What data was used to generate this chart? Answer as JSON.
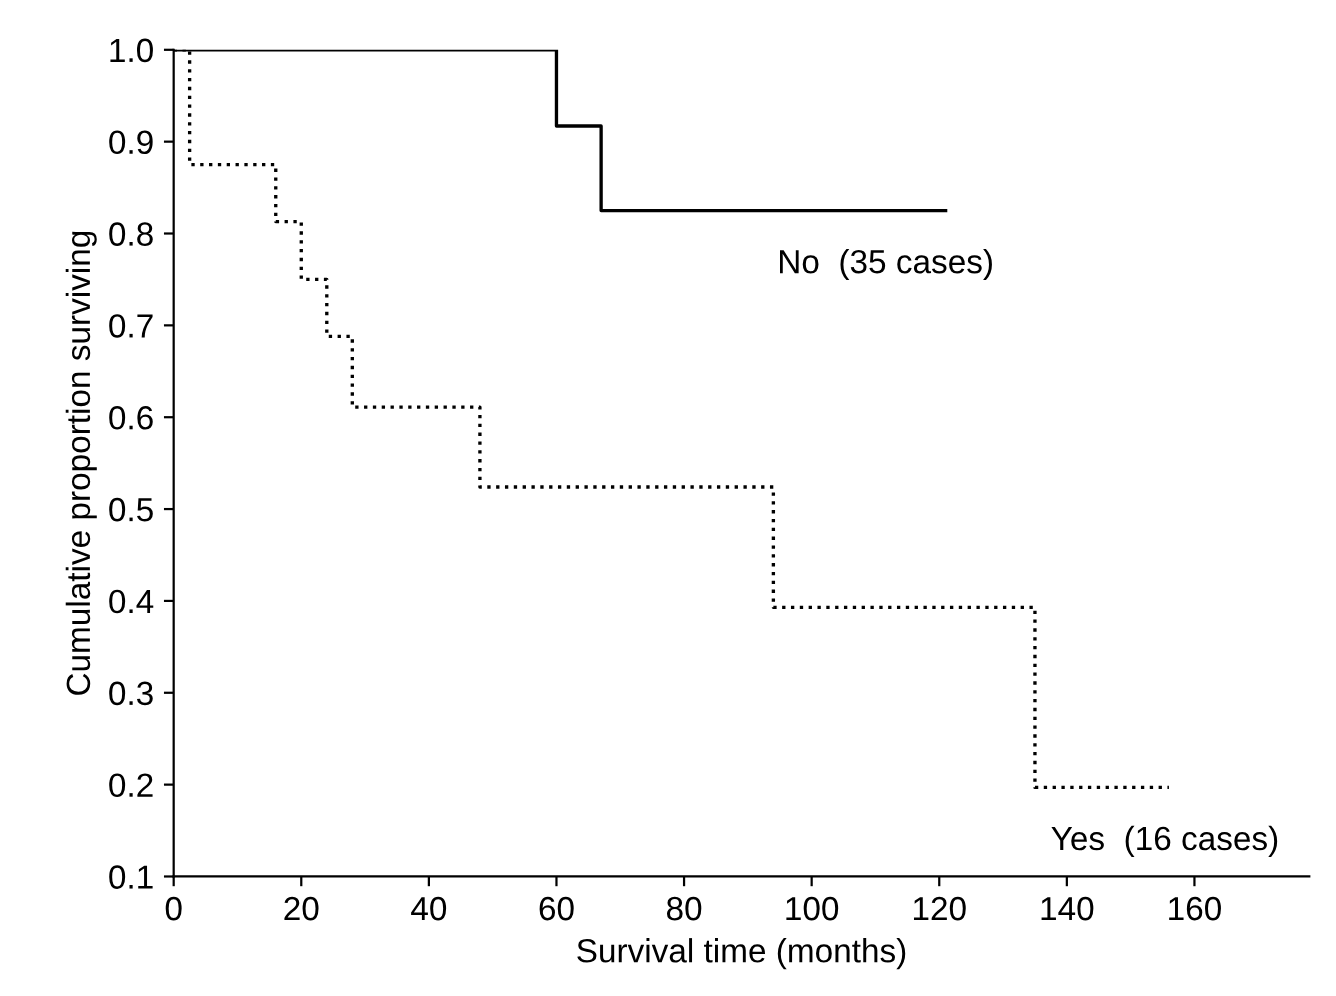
{
  "chart_data": {
    "type": "step",
    "xlabel": "Survival time (months)",
    "ylabel": "Cumulative proportion surviving",
    "xlim": [
      0,
      178
    ],
    "ylim": [
      0.1,
      1.0
    ],
    "xticks": [
      0,
      20,
      40,
      60,
      80,
      100,
      120,
      140,
      160
    ],
    "yticks": [
      {
        "value": 0.1,
        "label": "0.1"
      },
      {
        "value": 0.2,
        "label": "0.2"
      },
      {
        "value": 0.3,
        "label": "0.3"
      },
      {
        "value": 0.4,
        "label": "0.4"
      },
      {
        "value": 0.5,
        "label": "0.5"
      },
      {
        "value": 0.6,
        "label": "0.6"
      },
      {
        "value": 0.7,
        "label": "0.7"
      },
      {
        "value": 0.8,
        "label": "0.8"
      },
      {
        "value": 0.9,
        "label": "0.9"
      },
      {
        "value": 1.0,
        "label": "1.0"
      }
    ],
    "grid": false,
    "legend": false,
    "series": [
      {
        "color": "#000000",
        "line_style": "solid",
        "x": [
          0,
          60,
          67,
          121
        ],
        "values": [
          1.0,
          0.917,
          0.825,
          0.825
        ]
      },
      {
        "color": "#000000",
        "line_style": "dotted",
        "x": [
          0,
          2.5,
          16,
          20,
          24,
          28,
          48,
          94,
          135,
          156
        ],
        "values": [
          1.0,
          0.875,
          0.813,
          0.75,
          0.688,
          0.611,
          0.524,
          0.393,
          0.197,
          0.197
        ]
      }
    ],
    "annotations": [
      "No  (35 cases)",
      "Yes  (16 cases)"
    ]
  }
}
